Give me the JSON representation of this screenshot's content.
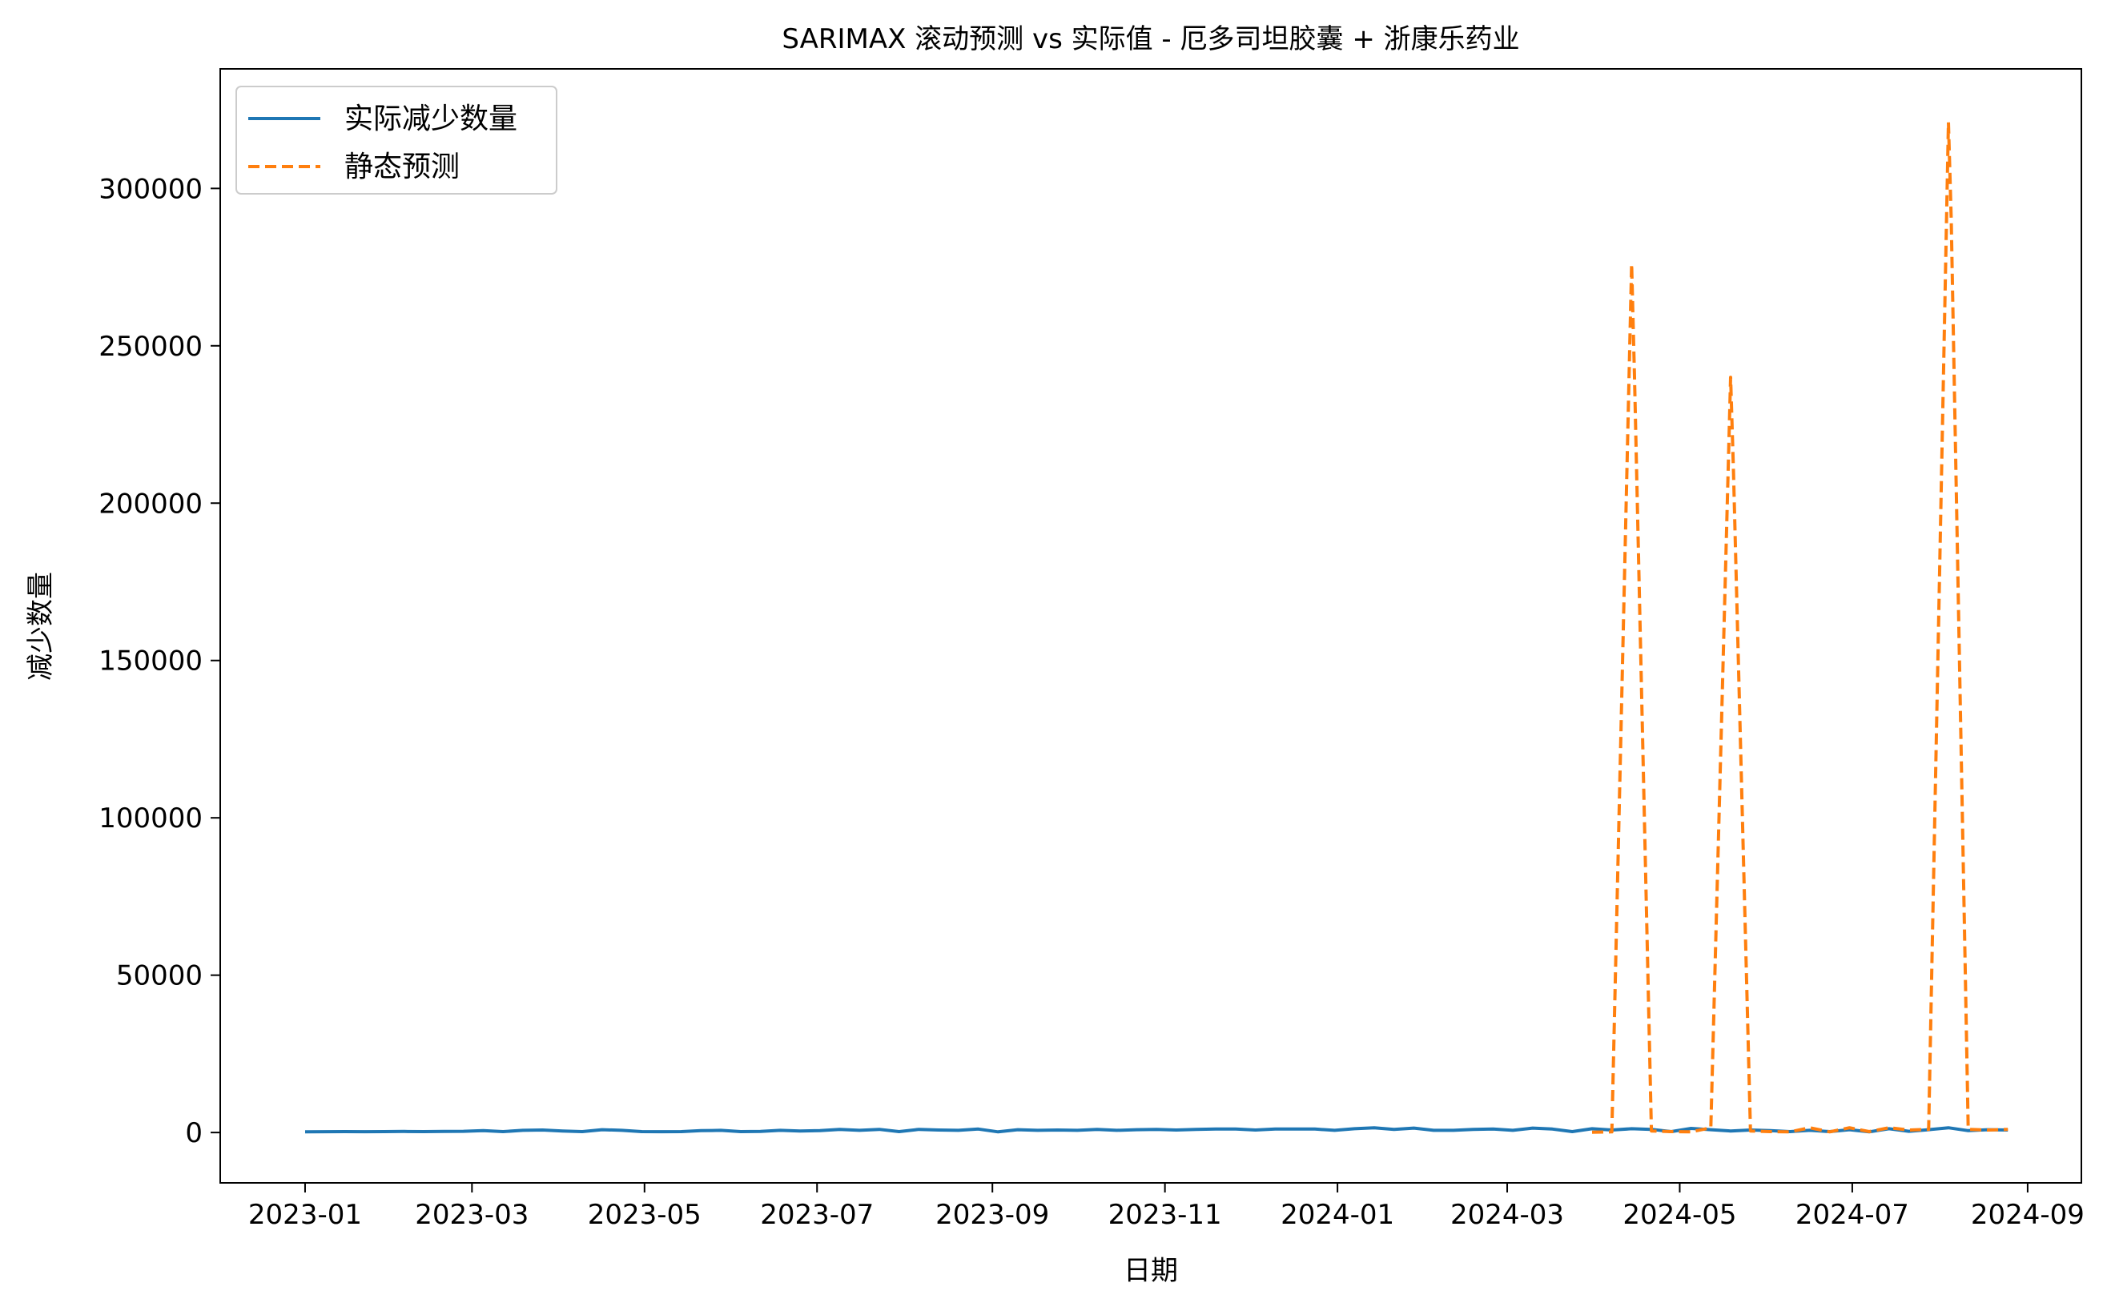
{
  "chart_data": {
    "type": "line",
    "title": "SARIMAX 滚动预测 vs 实际值 - 厄多司坦胶囊 + 浙康乐药业",
    "xlabel": "日期",
    "ylabel": "减少数量",
    "x_ticks": [
      "2023-01",
      "2023-03",
      "2023-05",
      "2023-07",
      "2023-09",
      "2023-11",
      "2024-01",
      "2024-03",
      "2024-05",
      "2024-07",
      "2024-09"
    ],
    "y_ticks": [
      "0",
      "50000",
      "100000",
      "150000",
      "200000",
      "250000",
      "300000"
    ],
    "ylim": [
      -16000,
      338000
    ],
    "xlim": [
      "2022-12-02",
      "2024-09-20"
    ],
    "legend_position": "upper-left",
    "colors": {
      "actual": "#1f77b4",
      "forecast": "#ff7f0e"
    },
    "series": [
      {
        "name": "实际减少数量",
        "style": "solid",
        "points": [
          [
            "2023-01-01",
            200
          ],
          [
            "2023-01-08",
            250
          ],
          [
            "2023-01-15",
            300
          ],
          [
            "2023-01-22",
            250
          ],
          [
            "2023-01-29",
            300
          ],
          [
            "2023-02-05",
            350
          ],
          [
            "2023-02-12",
            300
          ],
          [
            "2023-02-19",
            350
          ],
          [
            "2023-02-26",
            400
          ],
          [
            "2023-03-05",
            600
          ],
          [
            "2023-03-12",
            300
          ],
          [
            "2023-03-19",
            700
          ],
          [
            "2023-03-26",
            800
          ],
          [
            "2023-04-02",
            500
          ],
          [
            "2023-04-09",
            300
          ],
          [
            "2023-04-16",
            900
          ],
          [
            "2023-04-23",
            700
          ],
          [
            "2023-04-30",
            300
          ],
          [
            "2023-05-07",
            250
          ],
          [
            "2023-05-14",
            300
          ],
          [
            "2023-05-21",
            600
          ],
          [
            "2023-05-28",
            700
          ],
          [
            "2023-06-04",
            300
          ],
          [
            "2023-06-11",
            350
          ],
          [
            "2023-06-18",
            700
          ],
          [
            "2023-06-25",
            500
          ],
          [
            "2023-07-02",
            600
          ],
          [
            "2023-07-09",
            1000
          ],
          [
            "2023-07-16",
            700
          ],
          [
            "2023-07-23",
            1000
          ],
          [
            "2023-07-30",
            300
          ],
          [
            "2023-08-06",
            1000
          ],
          [
            "2023-08-13",
            800
          ],
          [
            "2023-08-20",
            700
          ],
          [
            "2023-08-27",
            1100
          ],
          [
            "2023-09-03",
            200
          ],
          [
            "2023-09-10",
            900
          ],
          [
            "2023-09-17",
            700
          ],
          [
            "2023-09-24",
            800
          ],
          [
            "2023-10-01",
            700
          ],
          [
            "2023-10-08",
            1000
          ],
          [
            "2023-10-15",
            700
          ],
          [
            "2023-10-22",
            900
          ],
          [
            "2023-10-29",
            1000
          ],
          [
            "2023-11-05",
            800
          ],
          [
            "2023-11-12",
            1000
          ],
          [
            "2023-11-19",
            1100
          ],
          [
            "2023-11-26",
            1100
          ],
          [
            "2023-12-03",
            800
          ],
          [
            "2023-12-10",
            1100
          ],
          [
            "2023-12-17",
            1100
          ],
          [
            "2023-12-24",
            1100
          ],
          [
            "2023-12-31",
            700
          ],
          [
            "2024-01-07",
            1200
          ],
          [
            "2024-01-14",
            1500
          ],
          [
            "2024-01-21",
            1000
          ],
          [
            "2024-01-28",
            1400
          ],
          [
            "2024-02-04",
            700
          ],
          [
            "2024-02-11",
            700
          ],
          [
            "2024-02-18",
            1000
          ],
          [
            "2024-02-25",
            1100
          ],
          [
            "2024-03-03",
            700
          ],
          [
            "2024-03-10",
            1400
          ],
          [
            "2024-03-17",
            1100
          ],
          [
            "2024-03-24",
            300
          ],
          [
            "2024-03-31",
            1200
          ],
          [
            "2024-04-07",
            800
          ],
          [
            "2024-04-14",
            1200
          ],
          [
            "2024-04-21",
            1000
          ],
          [
            "2024-04-28",
            300
          ],
          [
            "2024-05-05",
            1300
          ],
          [
            "2024-05-12",
            900
          ],
          [
            "2024-05-19",
            500
          ],
          [
            "2024-05-26",
            800
          ],
          [
            "2024-06-02",
            600
          ],
          [
            "2024-06-09",
            300
          ],
          [
            "2024-06-16",
            700
          ],
          [
            "2024-06-23",
            300
          ],
          [
            "2024-06-30",
            900
          ],
          [
            "2024-07-07",
            200
          ],
          [
            "2024-07-14",
            1200
          ],
          [
            "2024-07-21",
            400
          ],
          [
            "2024-07-28",
            900
          ],
          [
            "2024-08-04",
            1500
          ],
          [
            "2024-08-11",
            600
          ],
          [
            "2024-08-18",
            900
          ],
          [
            "2024-08-25",
            800
          ]
        ]
      },
      {
        "name": "静态预测",
        "style": "dashed",
        "points": [
          [
            "2024-03-31",
            100
          ],
          [
            "2024-04-07",
            200
          ],
          [
            "2024-04-14",
            276000
          ],
          [
            "2024-04-15",
            240000
          ],
          [
            "2024-04-21",
            500
          ],
          [
            "2024-04-28",
            300
          ],
          [
            "2024-05-05",
            200
          ],
          [
            "2024-05-12",
            1500
          ],
          [
            "2024-05-19",
            240000
          ],
          [
            "2024-05-20",
            210000
          ],
          [
            "2024-05-26",
            500
          ],
          [
            "2024-06-02",
            300
          ],
          [
            "2024-06-09",
            200
          ],
          [
            "2024-06-16",
            1500
          ],
          [
            "2024-06-23",
            200
          ],
          [
            "2024-06-30",
            1500
          ],
          [
            "2024-07-07",
            300
          ],
          [
            "2024-07-14",
            1500
          ],
          [
            "2024-07-21",
            800
          ],
          [
            "2024-07-28",
            1000
          ],
          [
            "2024-08-04",
            321000
          ],
          [
            "2024-08-05",
            290000
          ],
          [
            "2024-08-11",
            1000
          ],
          [
            "2024-08-18",
            800
          ],
          [
            "2024-08-25",
            1000
          ]
        ]
      }
    ]
  }
}
